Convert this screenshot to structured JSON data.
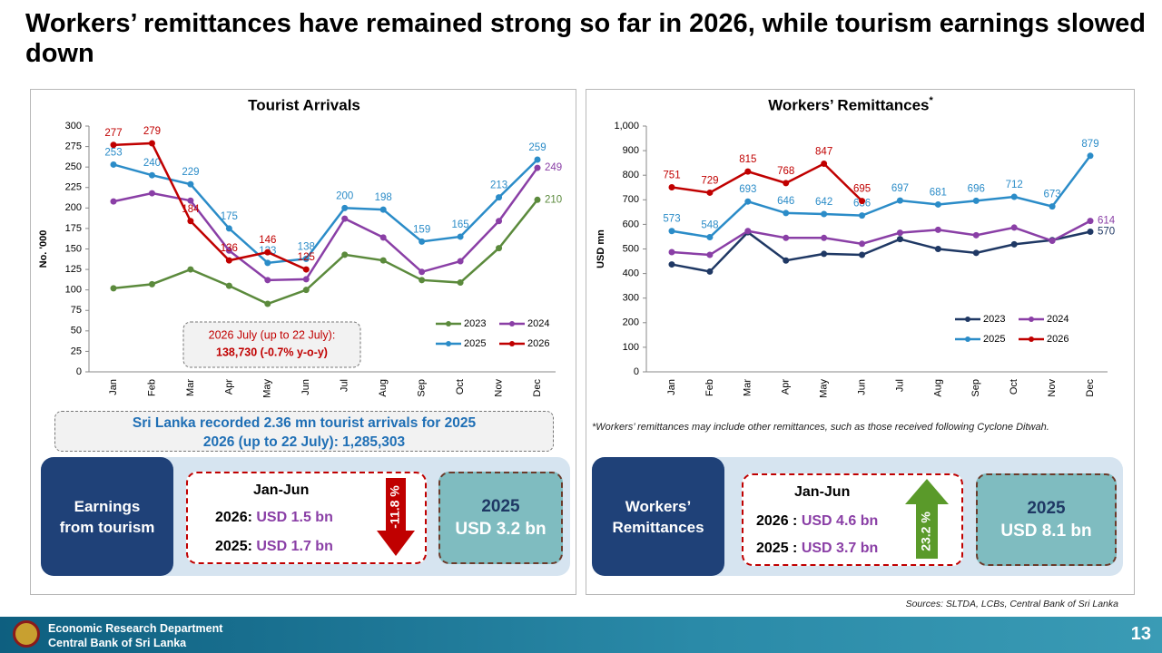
{
  "title": "Workers’ remittances have remained strong so far in 2026, while tourism earnings slowed down",
  "chart_data": [
    {
      "type": "line",
      "title": "Tourist Arrivals",
      "ylabel": "No. '000",
      "categories": [
        "Jan",
        "Feb",
        "Mar",
        "Apr",
        "May",
        "Jun",
        "Jul",
        "Aug",
        "Sep",
        "Oct",
        "Nov",
        "Dec"
      ],
      "ylim": [
        0,
        300
      ],
      "yticks": [
        0,
        25,
        50,
        75,
        100,
        125,
        150,
        175,
        200,
        225,
        250,
        275,
        300
      ],
      "grid": false,
      "legend": "lower right",
      "annotation": [
        "2026 July (up to 22 July):",
        "138,730 (-0.7% y-o-y)"
      ],
      "series": [
        {
          "name": "2023",
          "color": "#5b8a3c",
          "values": [
            102,
            107,
            125,
            105,
            83,
            100,
            143,
            136,
            112,
            109,
            151,
            210
          ],
          "value_labels": [
            null,
            null,
            null,
            null,
            null,
            null,
            null,
            null,
            null,
            null,
            null,
            "210"
          ]
        },
        {
          "name": "2024",
          "color": "#8a3fa6",
          "values": [
            208,
            218,
            209,
            148,
            112,
            113,
            187,
            164,
            122,
            135,
            184,
            249
          ],
          "value_labels": [
            null,
            null,
            null,
            null,
            null,
            null,
            null,
            null,
            null,
            null,
            null,
            "249"
          ]
        },
        {
          "name": "2025",
          "color": "#2b8cc8",
          "values": [
            253,
            240,
            229,
            175,
            133,
            138,
            200,
            198,
            159,
            165,
            213,
            259
          ],
          "value_labels": [
            "253",
            "240",
            "229",
            "175",
            "133",
            "138",
            "200",
            "198",
            "159",
            "165",
            "213",
            "259"
          ]
        },
        {
          "name": "2026",
          "color": "#c00000",
          "values": [
            277,
            279,
            184,
            136,
            146,
            125,
            null,
            null,
            null,
            null,
            null,
            null
          ],
          "value_labels": [
            "277",
            "279",
            "184",
            "136",
            "146",
            "125",
            null,
            null,
            null,
            null,
            null,
            null
          ]
        }
      ]
    },
    {
      "type": "line",
      "title": "Workers’ Remittances",
      "title_marker": "*",
      "ylabel": "USD mn",
      "categories": [
        "Jan",
        "Feb",
        "Mar",
        "Apr",
        "May",
        "Jun",
        "Jul",
        "Aug",
        "Sep",
        "Oct",
        "Nov",
        "Dec"
      ],
      "ylim": [
        0,
        1000
      ],
      "yticks": [
        0,
        100,
        200,
        300,
        400,
        500,
        600,
        700,
        800,
        900,
        {
          "value": 1000,
          "label": "1,000"
        }
      ],
      "grid": false,
      "legend": "lower right",
      "series": [
        {
          "name": "2023",
          "color": "#1f3864",
          "values": [
            437,
            408,
            568,
            453,
            480,
            476,
            540,
            500,
            484,
            519,
            536,
            570
          ],
          "value_labels": [
            null,
            null,
            null,
            null,
            null,
            null,
            null,
            null,
            null,
            null,
            null,
            "570"
          ]
        },
        {
          "name": "2024",
          "color": "#8a3fa6",
          "values": [
            487,
            476,
            573,
            545,
            545,
            521,
            566,
            578,
            556,
            587,
            533,
            614
          ],
          "value_labels": [
            null,
            null,
            null,
            null,
            null,
            null,
            null,
            null,
            null,
            null,
            null,
            "614"
          ]
        },
        {
          "name": "2025",
          "color": "#2b8cc8",
          "values": [
            573,
            548,
            693,
            646,
            642,
            636,
            697,
            681,
            696,
            712,
            673,
            879
          ],
          "value_labels": [
            "573",
            "548",
            "693",
            "646",
            "642",
            "636",
            "697",
            "681",
            "696",
            "712",
            "673",
            "879"
          ]
        },
        {
          "name": "2026",
          "color": "#c00000",
          "values": [
            751,
            729,
            815,
            768,
            847,
            695,
            null,
            null,
            null,
            null,
            null,
            null
          ],
          "value_labels": [
            "751",
            "729",
            "815",
            "768",
            "847",
            "695",
            null,
            null,
            null,
            null,
            null,
            null
          ]
        }
      ]
    }
  ],
  "tourism_panel": {
    "summary": [
      "Sri Lanka recorded 2.36 mn tourist arrivals for 2025",
      "2026 (up to 22 July): 1,285,303"
    ],
    "label": [
      "Earnings",
      "from tourism"
    ],
    "period": "Jan-Jun",
    "rows": [
      {
        "label": "2026:",
        "value": "USD 1.5 bn"
      },
      {
        "label": "2025:",
        "value": "USD 1.7 bn"
      }
    ],
    "change": "-11.8 %",
    "annual_year": "2025",
    "annual_value": "USD 3.2 bn"
  },
  "remittance_panel": {
    "footnote": "*Workers’ remittances may include other remittances, such as those received following Cyclone Ditwah.",
    "label": [
      "Workers’",
      "Remittances"
    ],
    "period": "Jan-Jun",
    "rows": [
      {
        "label": "2026 :",
        "value": "USD 4.6 bn"
      },
      {
        "label": "2025 :",
        "value": "USD 3.7 bn"
      }
    ],
    "change": "23.2 %",
    "annual_year": "2025",
    "annual_value": "USD 8.1 bn"
  },
  "sources": "Sources: SLTDA, LCBs,  Central Bank of Sri Lanka",
  "footer": {
    "department": "Economic Research Department",
    "bank": "Central Bank of Sri Lanka",
    "page": "13"
  }
}
